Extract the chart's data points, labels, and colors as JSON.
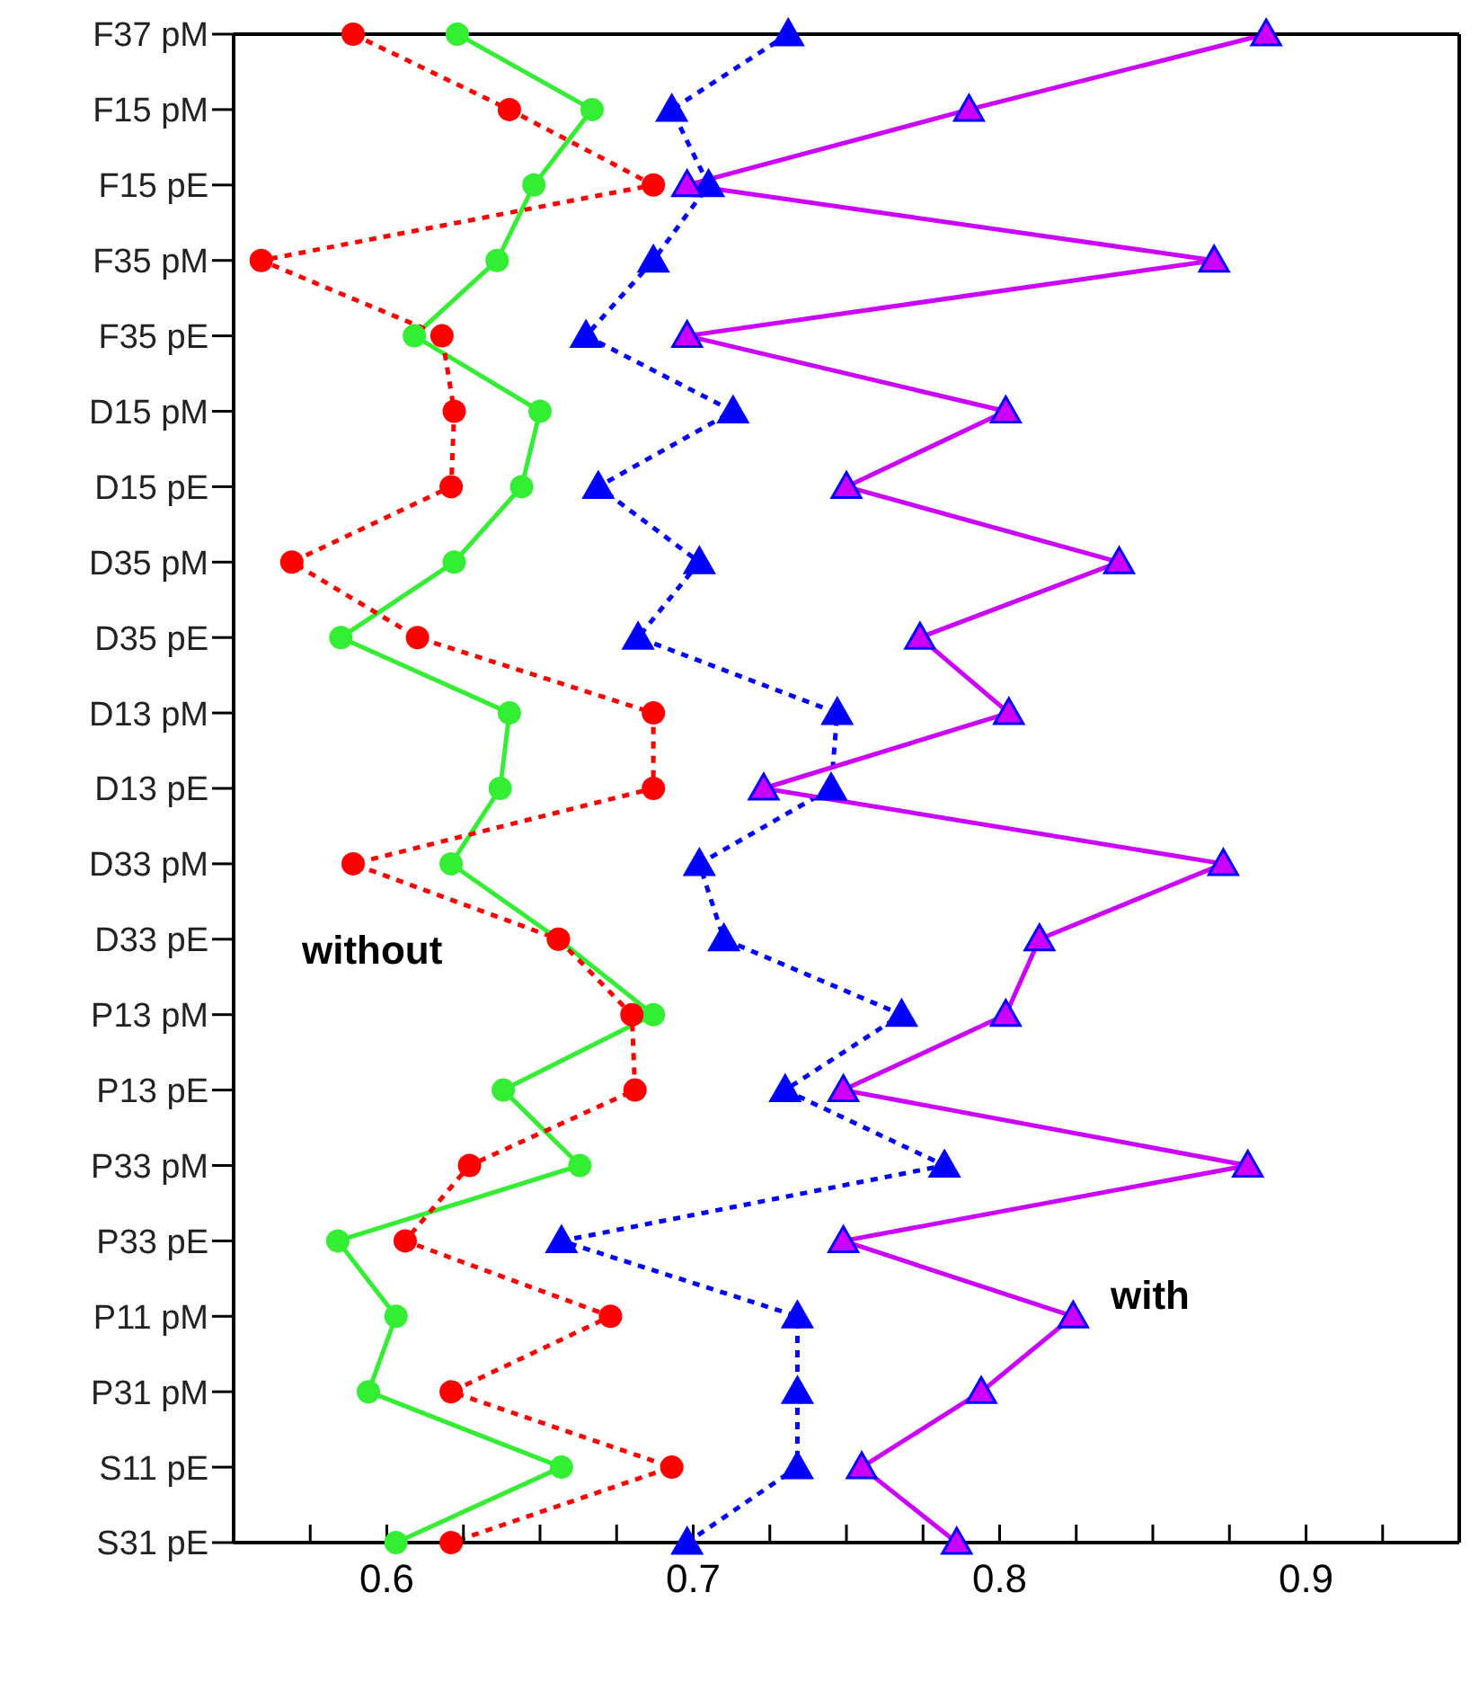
{
  "chart_data": {
    "type": "line",
    "categories": [
      "F37 pM",
      "F15 pM",
      "F15 pE",
      "F35 pM",
      "F35 pE",
      "D15 pM",
      "D15 pE",
      "D35 pM",
      "D35 pE",
      "D13 pM",
      "D13 pE",
      "D33 pM",
      "D33 pE",
      "P13 pM",
      "P13 pE",
      "P33 pM",
      "P33 pE",
      "P11 pM",
      "P31 pM",
      "S11 pE",
      "S31 pE"
    ],
    "series": [
      {
        "color": "#33ee33",
        "marker": "circle",
        "line_style": "solid",
        "values": [
          0.623,
          0.667,
          0.648,
          0.636,
          0.609,
          0.65,
          0.644,
          0.622,
          0.585,
          0.64,
          0.637,
          0.621,
          0.656,
          0.687,
          0.638,
          0.663,
          0.584,
          0.603,
          0.594,
          0.657,
          0.603
        ]
      },
      {
        "color": "#ff0000",
        "marker": "circle",
        "line_style": "dotted",
        "values": [
          0.589,
          0.64,
          0.687,
          0.559,
          0.618,
          0.622,
          0.621,
          0.569,
          0.61,
          0.687,
          0.687,
          0.589,
          0.656,
          0.68,
          0.681,
          0.627,
          0.606,
          0.673,
          0.621,
          0.693,
          0.621
        ]
      },
      {
        "color": "#0000ff",
        "marker": "triangle",
        "line_style": "dotted",
        "values": [
          0.731,
          0.693,
          0.705,
          0.687,
          0.665,
          0.713,
          0.669,
          0.702,
          0.682,
          0.747,
          0.745,
          0.702,
          0.71,
          0.768,
          0.73,
          0.782,
          0.657,
          0.734,
          0.734,
          0.734,
          0.698
        ]
      },
      {
        "color": "#cc00ff",
        "marker": "triangle",
        "line_style": "solid",
        "values": [
          0.887,
          0.79,
          0.698,
          0.87,
          0.698,
          0.802,
          0.75,
          0.839,
          0.774,
          0.803,
          0.723,
          0.873,
          0.813,
          0.802,
          0.749,
          0.881,
          0.749,
          0.824,
          0.794,
          0.755,
          0.786
        ]
      }
    ],
    "xlim": [
      0.55,
      0.95
    ],
    "xticks": [
      {
        "value": 0.55,
        "label": null
      },
      {
        "value": 0.575,
        "label": null
      },
      0.6,
      {
        "value": 0.625,
        "label": null
      },
      {
        "value": 0.65,
        "label": null
      },
      {
        "value": 0.675,
        "label": null
      },
      0.7,
      {
        "value": 0.725,
        "label": null
      },
      {
        "value": 0.75,
        "label": null
      },
      {
        "value": 0.775,
        "label": null
      },
      0.8,
      {
        "value": 0.825,
        "label": null
      },
      {
        "value": 0.85,
        "label": null
      },
      {
        "value": 0.875,
        "label": null
      },
      0.9,
      {
        "value": 0.925,
        "label": null
      },
      {
        "value": 0.95,
        "label": null
      }
    ],
    "annotations": [
      "without",
      "with"
    ],
    "orientation": "horizontal"
  }
}
